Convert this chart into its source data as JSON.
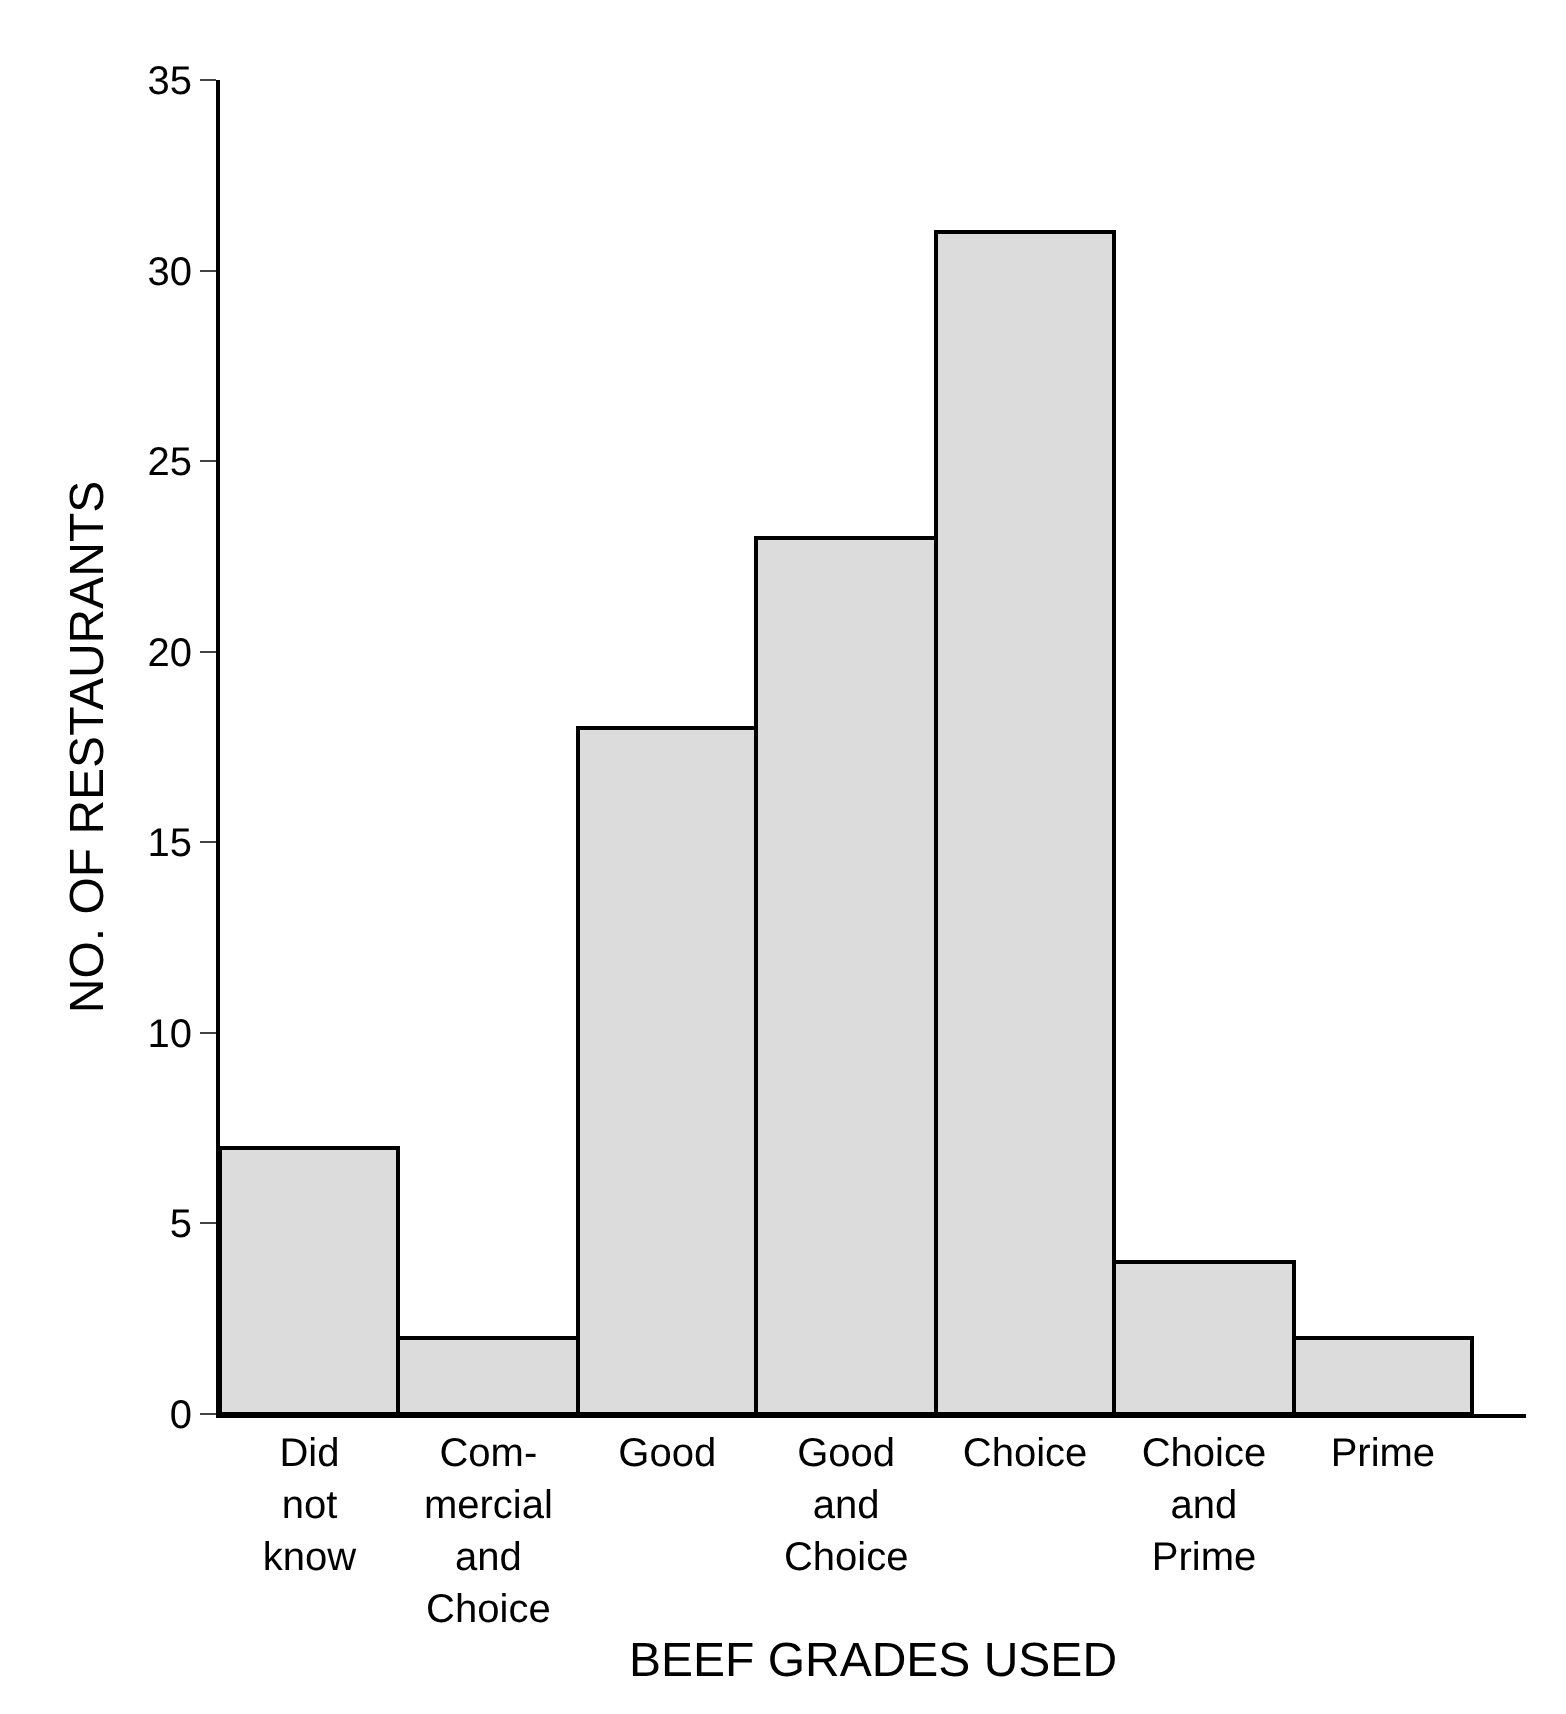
{
  "chart_data": {
    "type": "bar",
    "xlabel": "BEEF GRADES USED",
    "ylabel": "NO. OF RESTAURANTS",
    "categories": [
      "Did\nnot\nknow",
      "Com-\nmercial\nand\nChoice",
      "Good",
      "Good\nand\nChoice",
      "Choice",
      "Choice\nand\nPrime",
      "Prime"
    ],
    "values": [
      7,
      2,
      18,
      23,
      31,
      4,
      2
    ],
    "color": "#dcdcdc",
    "ylim": [
      0,
      35
    ],
    "yticks": [
      0,
      5,
      10,
      15,
      20,
      25,
      30,
      35
    ]
  }
}
